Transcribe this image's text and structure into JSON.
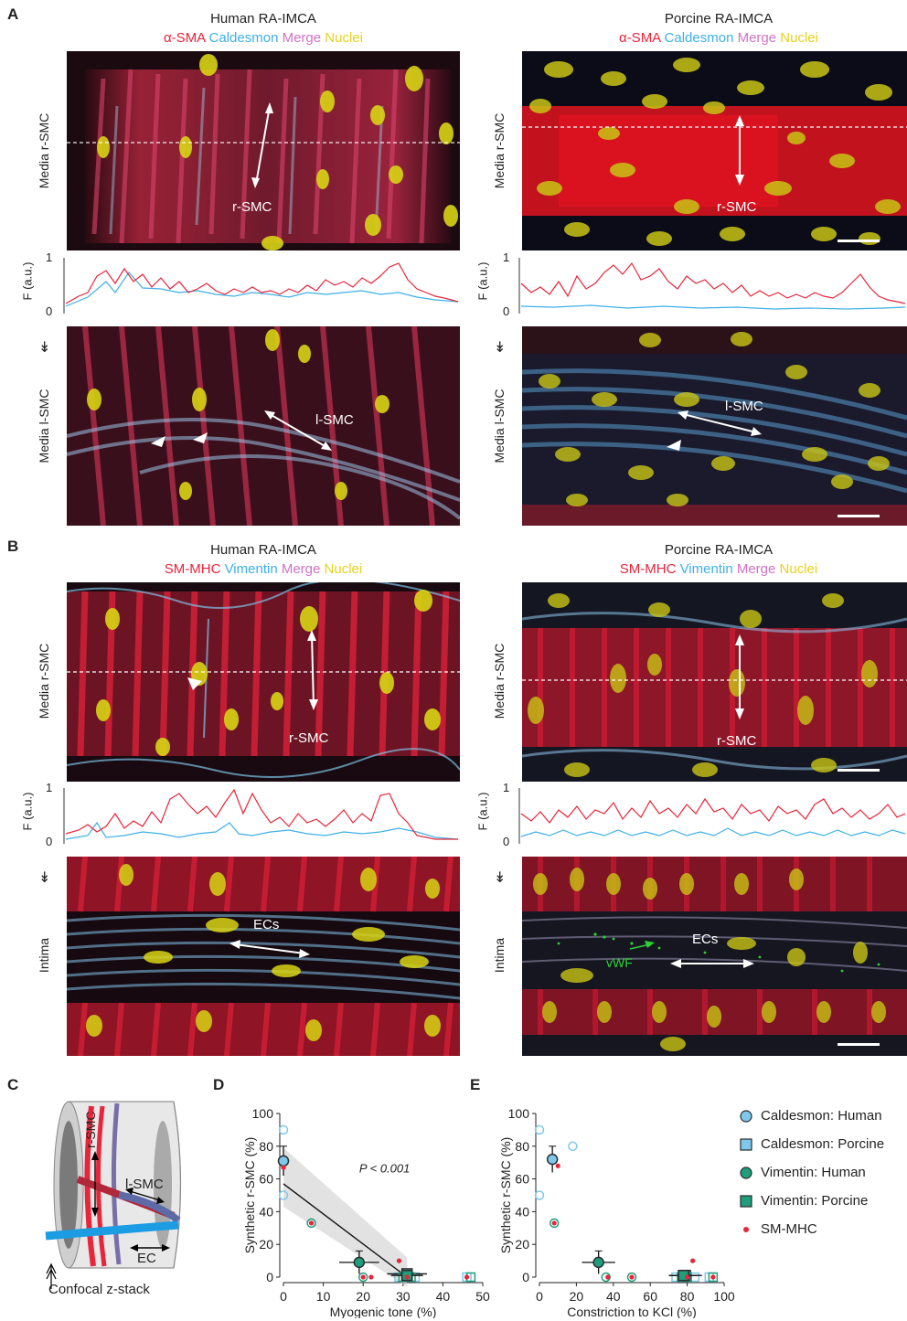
{
  "panels": {
    "A": "A",
    "B": "B",
    "C": "C",
    "D": "D",
    "E": "E"
  },
  "titles": {
    "human": "Human RA-IMCA",
    "porcine": "Porcine RA-IMCA"
  },
  "channels_A": {
    "c1": "α-SMA",
    "c2": "Caldesmon",
    "c3": "Merge",
    "c4": "Nuclei"
  },
  "channels_B": {
    "c1": "SM-MHC",
    "c2": "Vimentin",
    "c3": "Merge",
    "c4": "Nuclei"
  },
  "row_labels": {
    "media_r": "Media r-SMC",
    "media_l": "Media l-SMC",
    "intima": "Intima"
  },
  "image_labels": {
    "r_smc": "r-SMC",
    "l_smc": "l-SMC",
    "ecs": "ECs",
    "vwf": "vWF"
  },
  "profile": {
    "ylabel": "F (a.u.)",
    "y_top": "1",
    "y_bottom": "0",
    "arrow": "↡"
  },
  "colors": {
    "red": "#e8253a",
    "blue": "#3fb0e6",
    "pink": "#d072c6",
    "yellow": "#e6d21c",
    "teal": "#1f9e7c"
  },
  "schematic": {
    "r_smc": "r-SMC",
    "l_smc": "l-SMC",
    "ec": "EC",
    "caption": "Confocal z-stack"
  },
  "chart_data": [
    {
      "type": "scatter",
      "panel": "D",
      "xlabel": "Myogenic tone (%)",
      "ylabel": "Synthetic r-SMC (%)",
      "xlim": [
        0,
        50
      ],
      "ylim": [
        0,
        100
      ],
      "xticks": [
        0,
        10,
        20,
        30,
        40,
        50
      ],
      "yticks": [
        0,
        20,
        40,
        60,
        80,
        100
      ],
      "annotation": "P < 0.001",
      "series": [
        {
          "name": "Caldesmon: Human",
          "points": [
            [
              0,
              90
            ],
            [
              0,
              50
            ]
          ],
          "mean": [
            0,
            71
          ],
          "xerr": 0,
          "yerr": 9
        },
        {
          "name": "Caldesmon: Porcine",
          "points": [
            [
              29,
              0
            ],
            [
              31,
              0
            ],
            [
              33,
              0
            ],
            [
              46,
              0
            ]
          ],
          "mean": [
            31,
            2
          ],
          "xerr": 5,
          "yerr": 2
        },
        {
          "name": "Vimentin: Human",
          "points": [
            [
              7,
              33
            ],
            [
              20,
              0
            ]
          ],
          "mean": [
            19,
            9
          ],
          "xerr": 5,
          "yerr": 7
        },
        {
          "name": "Vimentin: Porcine",
          "points": [
            [
              30,
              0
            ],
            [
              32,
              0
            ],
            [
              47,
              0
            ]
          ],
          "mean": [
            31,
            1
          ],
          "xerr": 4,
          "yerr": 1
        },
        {
          "name": "SM-MHC",
          "points": [
            [
              0,
              67
            ],
            [
              7,
              33
            ],
            [
              20,
              0
            ],
            [
              22,
              0
            ],
            [
              29,
              10
            ],
            [
              31,
              0
            ],
            [
              46,
              0
            ]
          ]
        }
      ],
      "fit": {
        "x": [
          0,
          31
        ],
        "y": [
          57,
          0
        ]
      }
    },
    {
      "type": "scatter",
      "panel": "E",
      "xlabel": "Constriction to KCl (%)",
      "ylabel": "Synthetic r-SMC (%)",
      "xlim": [
        0,
        100
      ],
      "ylim": [
        0,
        100
      ],
      "xticks": [
        0,
        20,
        40,
        60,
        80,
        100
      ],
      "yticks": [
        0,
        20,
        40,
        60,
        80,
        100
      ],
      "series": [
        {
          "name": "Caldesmon: Human",
          "points": [
            [
              0,
              90
            ],
            [
              0,
              50
            ],
            [
              18,
              80
            ]
          ],
          "mean": [
            7,
            72
          ],
          "xerr": 0,
          "yerr": 8
        },
        {
          "name": "Caldesmon: Porcine",
          "points": [
            [
              74,
              0
            ],
            [
              78,
              0
            ],
            [
              84,
              0
            ],
            [
              92,
              0
            ]
          ],
          "mean": [
            79,
            1
          ],
          "xerr": 9,
          "yerr": 1
        },
        {
          "name": "Vimentin: Human",
          "points": [
            [
              8,
              33
            ],
            [
              36,
              0
            ],
            [
              50,
              0
            ]
          ],
          "mean": [
            32,
            9
          ],
          "xerr": 9,
          "yerr": 7
        },
        {
          "name": "Vimentin: Porcine",
          "points": [
            [
              77,
              0
            ],
            [
              80,
              0
            ],
            [
              94,
              0
            ]
          ],
          "mean": [
            78,
            1
          ],
          "xerr": 7,
          "yerr": 1
        },
        {
          "name": "SM-MHC",
          "points": [
            [
              10,
              68
            ],
            [
              8,
              33
            ],
            [
              37,
              0
            ],
            [
              50,
              0
            ],
            [
              83,
              10
            ],
            [
              80,
              0
            ],
            [
              94,
              0
            ]
          ]
        }
      ]
    }
  ],
  "legend": [
    {
      "label": "Caldesmon: Human",
      "shape": "circle",
      "fill": "#7ec8ec",
      "stroke": "#2b2b2b"
    },
    {
      "label": "Caldesmon: Porcine",
      "shape": "square",
      "fill": "#7ec8ec",
      "stroke": "#2b2b2b"
    },
    {
      "label": "Vimentin: Human",
      "shape": "circle",
      "fill": "#1f9e7c",
      "stroke": "#2b2b2b"
    },
    {
      "label": "Vimentin: Porcine",
      "shape": "square",
      "fill": "#1f9e7c",
      "stroke": "#2b2b2b"
    },
    {
      "label": "SM-MHC",
      "shape": "dot",
      "fill": "#e8253a",
      "stroke": "none"
    }
  ]
}
